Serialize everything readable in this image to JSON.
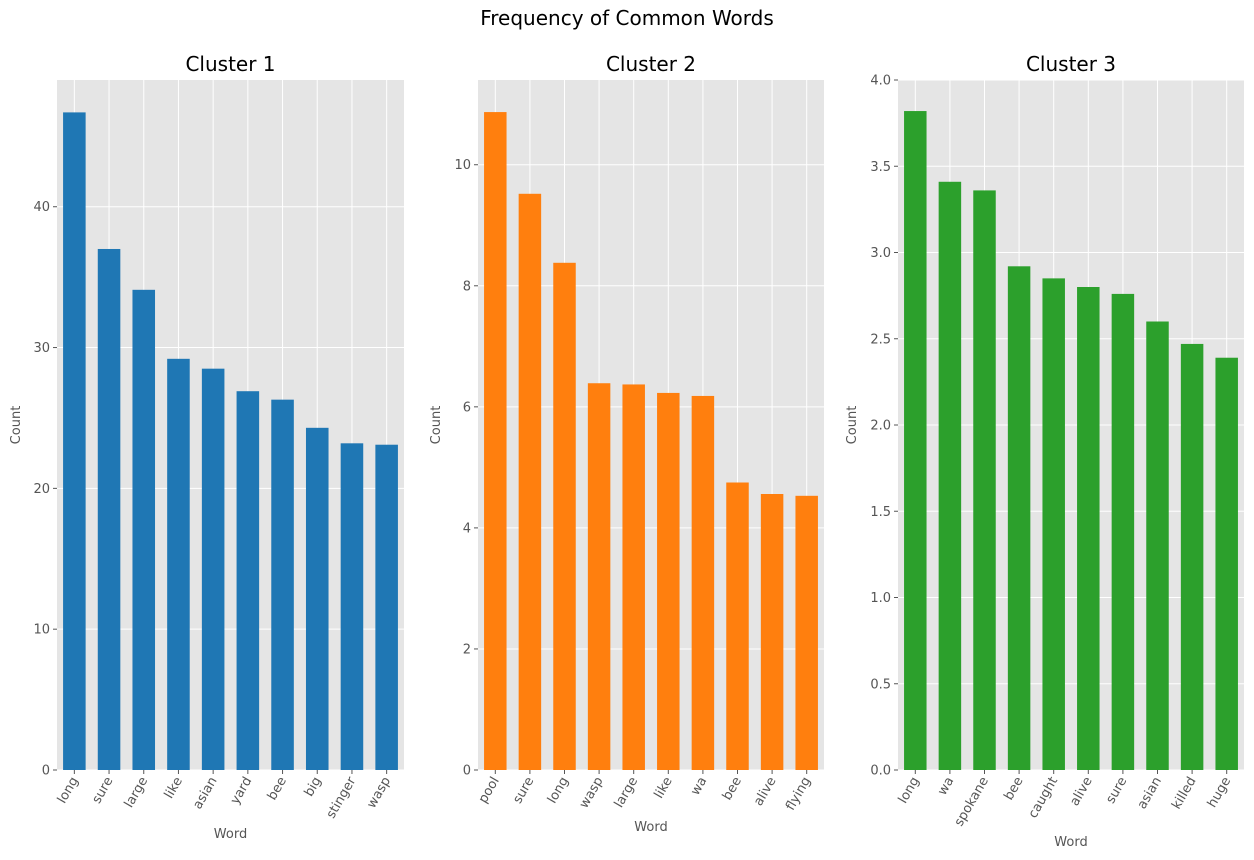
{
  "figure_title": "Frequency of Common Words",
  "chart_data": [
    {
      "type": "bar",
      "title": "Cluster 1",
      "xlabel": "Word",
      "ylabel": "Count",
      "color": "#1f77b4",
      "categories": [
        "long",
        "sure",
        "large",
        "like",
        "asian",
        "yard",
        "bee",
        "big",
        "stinger",
        "wasp"
      ],
      "values": [
        46.7,
        37.0,
        34.1,
        29.2,
        28.5,
        26.9,
        26.3,
        24.3,
        23.2,
        23.1
      ],
      "ylim": [
        0,
        49
      ],
      "yticks": [
        0,
        10,
        20,
        30,
        40
      ],
      "grid": true
    },
    {
      "type": "bar",
      "title": "Cluster 2",
      "xlabel": "Word",
      "ylabel": "Count",
      "color": "#ff7f0e",
      "categories": [
        "pool",
        "sure",
        "long",
        "wasp",
        "large",
        "like",
        "wa",
        "bee",
        "alive",
        "flying"
      ],
      "values": [
        10.87,
        9.52,
        8.38,
        6.39,
        6.37,
        6.23,
        6.18,
        4.75,
        4.56,
        4.53
      ],
      "ylim": [
        0,
        11.4
      ],
      "yticks": [
        0,
        2,
        4,
        6,
        8,
        10
      ],
      "grid": true
    },
    {
      "type": "bar",
      "title": "Cluster 3",
      "xlabel": "Word",
      "ylabel": "Count",
      "color": "#2ca02c",
      "categories": [
        "long",
        "wa",
        "spokane",
        "bee",
        "caught",
        "alive",
        "sure",
        "asian",
        "killed",
        "huge"
      ],
      "values": [
        3.82,
        3.41,
        3.36,
        2.92,
        2.85,
        2.8,
        2.76,
        2.6,
        2.47,
        2.39
      ],
      "ylim": [
        0,
        4.0
      ],
      "yticks": [
        0.0,
        0.5,
        1.0,
        1.5,
        2.0,
        2.5,
        3.0,
        3.5,
        4.0
      ],
      "ytick_format": 1,
      "grid": true
    }
  ]
}
